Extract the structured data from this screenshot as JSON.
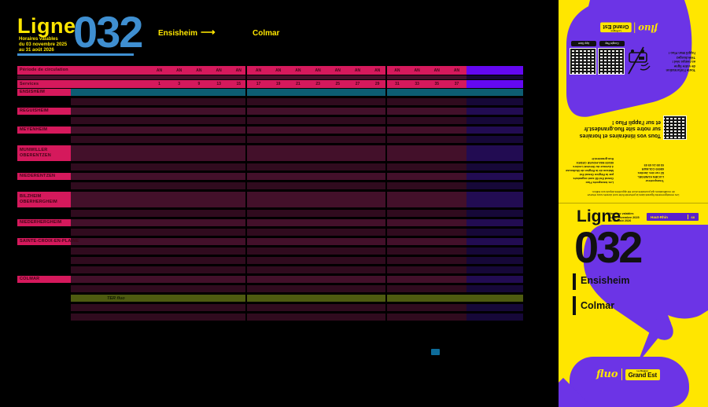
{
  "header": {
    "ligne_label": "Ligne",
    "line_number": "032",
    "validity_lines": [
      "Horaires valables",
      "du 03 novembre 2025",
      "au 31 août 2026"
    ],
    "origin": "Ensisheim",
    "arrow": "⟶",
    "destination": "Colmar"
  },
  "timetable": {
    "period_label": "Période de circulation",
    "period_value": "AN",
    "services_label": "Services",
    "services": [
      "1",
      "3",
      "9",
      "13",
      "15",
      "17",
      "19",
      "21",
      "23",
      "25",
      "27",
      "29",
      "31",
      "33",
      "35",
      "37"
    ],
    "ter_label": "TER fluo",
    "rows": [
      {
        "label": "ENSISHEIM",
        "type": "teal"
      },
      {
        "label": "",
        "type": "data"
      },
      {
        "label": "REGUISHEIM",
        "type": "stop"
      },
      {
        "label": "",
        "type": "data"
      },
      {
        "label": "MEYENHEIM",
        "type": "stop"
      },
      {
        "label": "",
        "type": "data"
      },
      {
        "label": "MUNWILLER OBERENTZEN",
        "type": "stop2",
        "lines": [
          "MUNWILLER",
          "OBERENTZEN"
        ]
      },
      {
        "label": "",
        "type": "data"
      },
      {
        "label": "NIEDERENTZEN",
        "type": "stop"
      },
      {
        "label": "",
        "type": "data"
      },
      {
        "label": "BILZHEIM OBERHERGHEIM",
        "type": "stop2",
        "lines": [
          "BILZHEIM",
          "OBERHERGHEIM"
        ]
      },
      {
        "label": "",
        "type": "data"
      },
      {
        "label": "NIEDERHERGHEIM",
        "type": "stop"
      },
      {
        "label": "",
        "type": "data"
      },
      {
        "label": "SAINTE-CROIX-EN-PLAINE",
        "type": "stop"
      },
      {
        "label": "",
        "type": "data"
      },
      {
        "label": "",
        "type": "data"
      },
      {
        "label": "",
        "type": "data"
      },
      {
        "label": "COLMAR",
        "type": "stop"
      },
      {
        "label": "",
        "type": "data"
      },
      {
        "label": "TER fluo",
        "type": "green"
      },
      {
        "label": "",
        "type": "data"
      },
      {
        "label": "",
        "type": "data"
      }
    ]
  },
  "back_cover": {
    "legal_lines": [
      "Les renseignements figurant dans la présente fiche sont donnés sous réserve",
      "de modifications qui pourraient avoir été apportées depuis son édition."
    ],
    "transporteur_lines": [
      "Transporteur",
      "LUCIEN KUNEGEL",
      "82 rue des Jardins",
      "68000 COLMAR",
      "03 89 24 65 65"
    ],
    "region_lines": [
      "Les transports Fluo",
      "Grand Est 68 sont organisés",
      "par la Région Grand Est",
      "Maison de la Région de Mulhouse",
      "4 Avenue du Général Leclerc",
      "68100 MULHOUSE CEDEX",
      "fluo.grandest.fr"
    ],
    "headline_lines": [
      "Tous vos itinéraires et horaires",
      "sur notre site fluo.grandest.fr",
      "et sur l'appli Fluo !"
    ],
    "promo_lines": [
      "Toute l'information",
      "de votre ligne",
      "en temps réel !",
      "Téléchargez",
      "l'appli Mon Fluo !"
    ],
    "badge_appstore": "App Store",
    "badge_googleplay": "Google Play",
    "logo": {
      "fluo": "fluo",
      "region_small": "La Région",
      "region": "Grand Est"
    }
  },
  "front_cover": {
    "ligne_label": "Ligne",
    "validity_lines": [
      "Horaires valables",
      "du 03 novembre 2025",
      "au 31 août 2026"
    ],
    "department": "Haut-Rhin",
    "department_code": "68",
    "line_number": "032",
    "origin": "Ensisheim",
    "destination": "Colmar",
    "logo": {
      "fluo": "fluo",
      "region_small": "La Région",
      "region": "Grand Est"
    }
  },
  "colors": {
    "pink": "#d5195c",
    "maroon": "#43102a",
    "teal": "#0d5d73",
    "indigo": "#220c52",
    "bright_purple": "#6408f2",
    "olive_green": "#4e5b10",
    "brand_yellow": "#ffe600",
    "line_blue": "#3f8fd1",
    "panel_purple": "#6c34e6",
    "page_black": "#000000"
  }
}
